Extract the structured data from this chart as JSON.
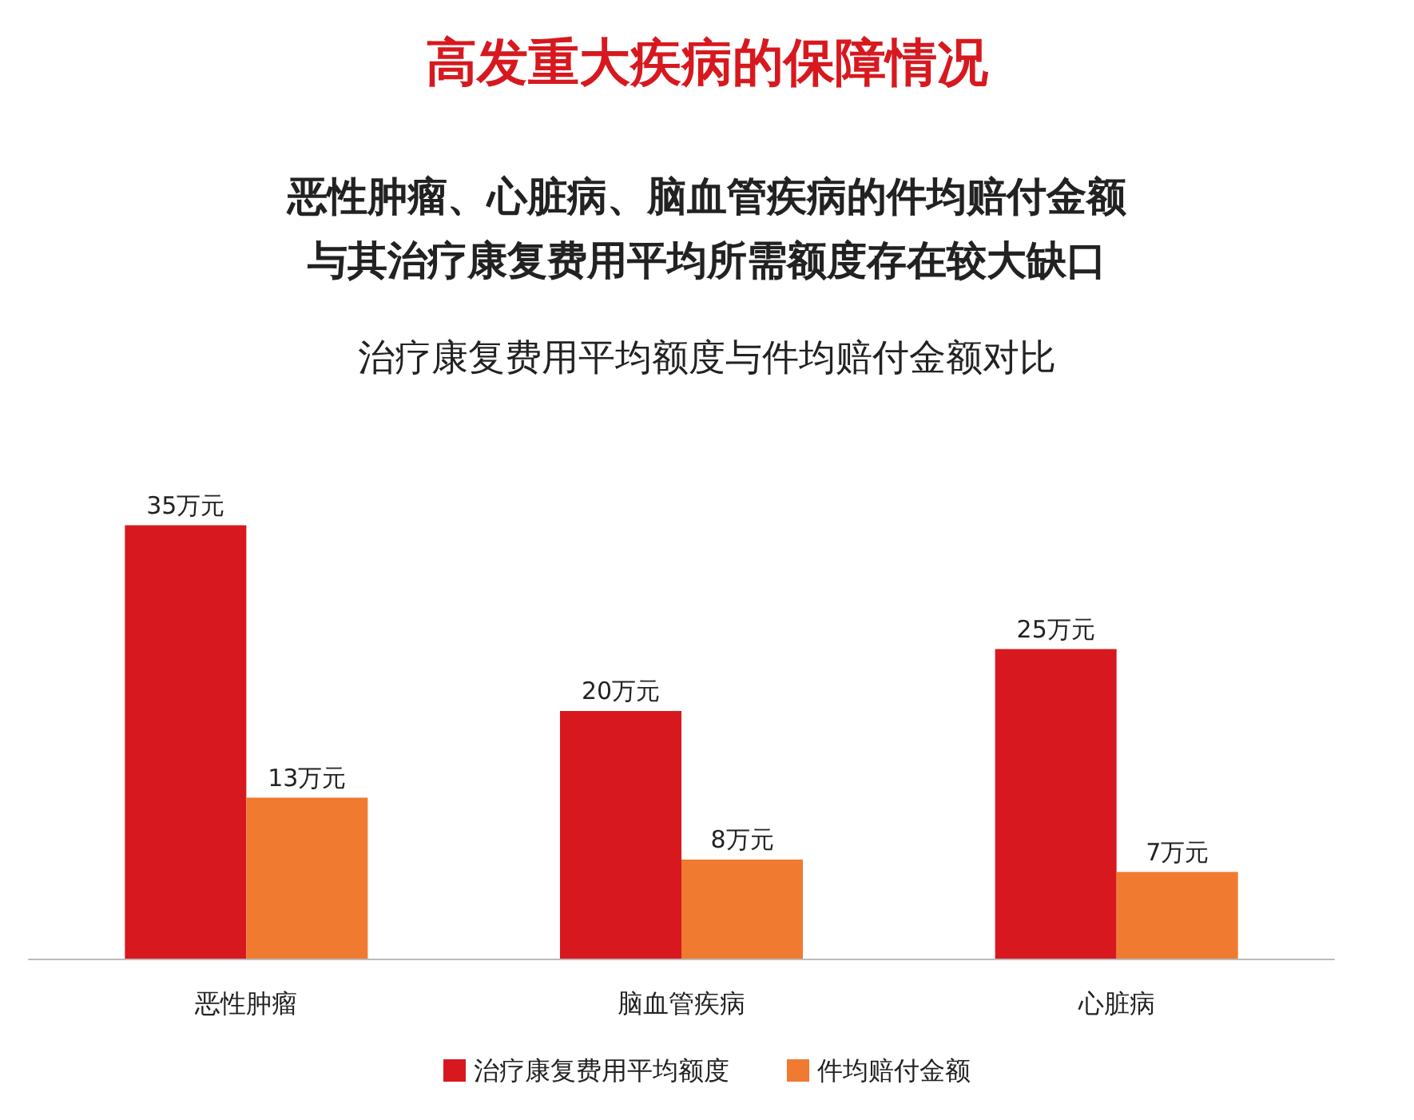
{
  "chart_data": {
    "type": "bar",
    "title": "高发重大疾病的保障情况",
    "subtitle": "恶性肿瘤、心脏病、脑血管疾病的件均赔付金额与其治疗康复费用平均所需额度存在较大缺口",
    "annotations": [
      "治疗康复费用平均额度与件均赔付金额对比"
    ],
    "categories": [
      "恶性肿瘤",
      "脑血管疾病",
      "心脏病"
    ],
    "series": [
      {
        "name": "治疗康复费用平均额度",
        "color": "#d7191f",
        "values": [
          35,
          20,
          25
        ],
        "value_labels": [
          "35万元",
          "20万元",
          "25万元"
        ]
      },
      {
        "name": "件均赔付金额",
        "color": "#f07a30",
        "values": [
          13,
          8,
          7
        ],
        "value_labels": [
          "13万元",
          "8万元",
          "7万元"
        ]
      }
    ],
    "legend": "bottom",
    "grid": false
  }
}
